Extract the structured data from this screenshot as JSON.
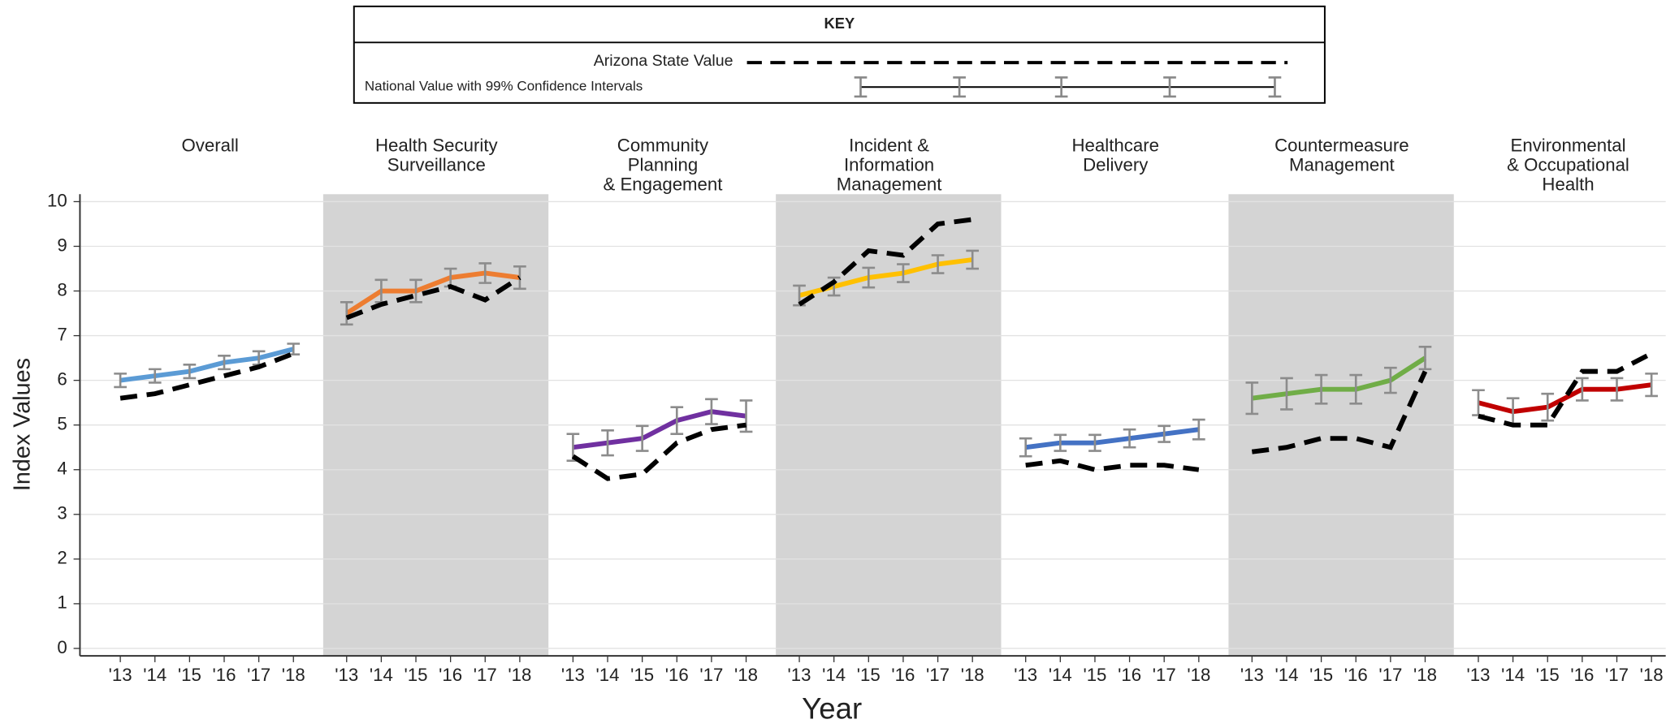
{
  "chart_data": {
    "type": "line",
    "key_title": "KEY",
    "key_state_label": "Arizona State Value",
    "key_national_label": "National Value with 99% Confidence Intervals",
    "y_label": "Index Values",
    "x_label": "Year",
    "ylim": [
      0,
      10
    ],
    "yticks": [
      0,
      1,
      2,
      3,
      4,
      5,
      6,
      7,
      8,
      9,
      10
    ],
    "grid": true,
    "categories": [
      "'13",
      "'14",
      "'15",
      "'16",
      "'17",
      "'18"
    ],
    "state_color": "#000000",
    "shade_color": "#d4d4d4",
    "panels": [
      {
        "title": [
          "Overall"
        ],
        "color": "#5b9bd5",
        "shaded": false,
        "national": [
          6.0,
          6.1,
          6.2,
          6.4,
          6.5,
          6.7
        ],
        "error": [
          0.15,
          0.15,
          0.15,
          0.15,
          0.15,
          0.12
        ],
        "state": [
          5.6,
          5.7,
          5.9,
          6.1,
          6.3,
          6.6
        ]
      },
      {
        "title": [
          "Health Security",
          "Surveillance"
        ],
        "color": "#ed7d31",
        "shaded": true,
        "national": [
          7.5,
          8.0,
          8.0,
          8.3,
          8.4,
          8.3
        ],
        "error": [
          0.25,
          0.25,
          0.25,
          0.2,
          0.22,
          0.25
        ],
        "state": [
          7.4,
          7.7,
          7.9,
          8.1,
          7.8,
          8.3
        ]
      },
      {
        "title": [
          "Community",
          "Planning",
          "& Engagement"
        ],
        "color": "#7030a0",
        "shaded": false,
        "national": [
          4.5,
          4.6,
          4.7,
          5.1,
          5.3,
          5.2
        ],
        "error": [
          0.3,
          0.28,
          0.28,
          0.3,
          0.28,
          0.35
        ],
        "state": [
          4.3,
          3.8,
          3.9,
          4.6,
          4.9,
          5.0
        ]
      },
      {
        "title": [
          "Incident &",
          "Information",
          "Management"
        ],
        "color": "#ffc000",
        "shaded": true,
        "national": [
          7.9,
          8.1,
          8.3,
          8.4,
          8.6,
          8.7
        ],
        "error": [
          0.22,
          0.2,
          0.22,
          0.2,
          0.2,
          0.2
        ],
        "state": [
          7.7,
          8.2,
          8.9,
          8.8,
          9.5,
          9.6
        ]
      },
      {
        "title": [
          "Healthcare",
          "Delivery"
        ],
        "color": "#4472c4",
        "shaded": false,
        "national": [
          4.5,
          4.6,
          4.6,
          4.7,
          4.8,
          4.9
        ],
        "error": [
          0.2,
          0.18,
          0.18,
          0.2,
          0.18,
          0.22
        ],
        "state": [
          4.1,
          4.2,
          4.0,
          4.1,
          4.1,
          4.0
        ]
      },
      {
        "title": [
          "Countermeasure",
          "Management"
        ],
        "color": "#70ad47",
        "shaded": true,
        "national": [
          5.6,
          5.7,
          5.8,
          5.8,
          6.0,
          6.5
        ],
        "error": [
          0.35,
          0.35,
          0.32,
          0.32,
          0.28,
          0.25
        ],
        "state": [
          4.4,
          4.5,
          4.7,
          4.7,
          4.5,
          6.2
        ]
      },
      {
        "title": [
          "Environmental",
          "& Occupational",
          "Health"
        ],
        "color": "#c00000",
        "shaded": false,
        "national": [
          5.5,
          5.3,
          5.4,
          5.8,
          5.8,
          5.9
        ],
        "error": [
          0.28,
          0.3,
          0.3,
          0.25,
          0.25,
          0.25
        ],
        "state": [
          5.2,
          5.0,
          5.0,
          6.2,
          6.2,
          6.6
        ]
      }
    ]
  }
}
